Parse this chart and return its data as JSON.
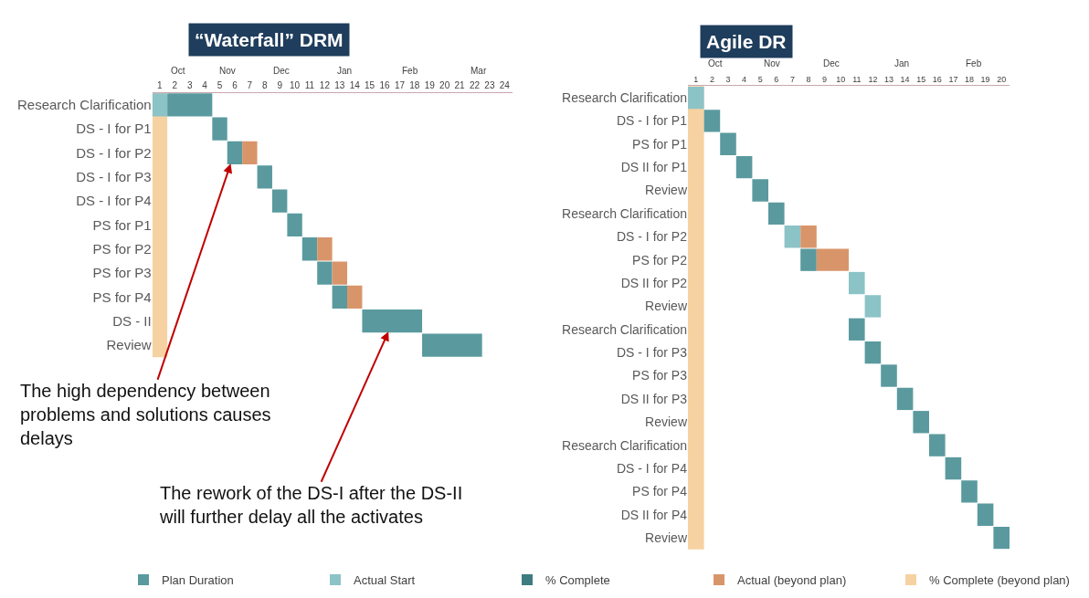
{
  "chart_data": [
    {
      "type": "bar",
      "orientation": "horizontal",
      "title": "“Waterfall” DRM",
      "categories": [
        "Research Clarification",
        "DS - I for P1",
        "DS - I for P2",
        "DS - I for P3",
        "DS - I for P4",
        "PS for P1",
        "PS for P2",
        "PS for P3",
        "PS for P4",
        "DS - II",
        "Review"
      ],
      "series": [
        {
          "name": "Plan Duration",
          "color": "#5a9a9e",
          "base": [
            1,
            4,
            5,
            7,
            8,
            9,
            10,
            11,
            12,
            14,
            18
          ],
          "values": [
            3,
            1,
            1,
            1,
            1,
            1,
            1,
            1,
            1,
            4,
            4
          ]
        },
        {
          "name": "Actual Start",
          "color": "#8cc3c7",
          "base": [
            0,
            null,
            null,
            null,
            null,
            null,
            null,
            null,
            null,
            null,
            null
          ],
          "values": [
            1,
            null,
            null,
            null,
            null,
            null,
            null,
            null,
            null,
            null,
            null
          ]
        },
        {
          "name": "% Complete",
          "color": "#3f7c80",
          "base": [
            null,
            null,
            null,
            null,
            null,
            null,
            null,
            null,
            null,
            null,
            null
          ],
          "values": [
            null,
            null,
            null,
            null,
            null,
            null,
            null,
            null,
            null,
            null,
            null
          ]
        },
        {
          "name": "Actual (beyond plan)",
          "color": "#d9956a",
          "base": [
            null,
            null,
            6,
            null,
            null,
            null,
            11,
            12,
            13,
            null,
            null
          ],
          "values": [
            null,
            null,
            1,
            null,
            null,
            null,
            1,
            1,
            1,
            null,
            null
          ]
        }
      ],
      "xlim": [
        0,
        24
      ],
      "xticks": [
        {
          "value": 0.5,
          "label": "1"
        },
        {
          "value": 1.5,
          "label": "2"
        },
        {
          "value": 2.5,
          "label": "3"
        },
        {
          "value": 3.5,
          "label": "4"
        },
        {
          "value": 4.5,
          "label": "5"
        },
        {
          "value": 5.5,
          "label": "6"
        },
        {
          "value": 6.5,
          "label": "7"
        },
        {
          "value": 7.5,
          "label": "8"
        },
        {
          "value": 8.5,
          "label": "9"
        },
        {
          "value": 9.5,
          "label": "10"
        },
        {
          "value": 10.5,
          "label": "11"
        },
        {
          "value": 11.5,
          "label": "12"
        },
        {
          "value": 12.5,
          "label": "13"
        },
        {
          "value": 13.5,
          "label": "14"
        },
        {
          "value": 14.5,
          "label": "15"
        },
        {
          "value": 15.5,
          "label": "16"
        },
        {
          "value": 16.5,
          "label": "17"
        },
        {
          "value": 17.5,
          "label": "18"
        },
        {
          "value": 18.5,
          "label": "19"
        },
        {
          "value": 19.5,
          "label": "20"
        },
        {
          "value": 20.5,
          "label": "21"
        },
        {
          "value": 21.5,
          "label": "22"
        },
        {
          "value": 22.5,
          "label": "23"
        },
        {
          "value": 23.5,
          "label": "24"
        }
      ],
      "bands": [
        {
          "axis": "x",
          "from": 0,
          "to": 1,
          "label": "% Complete (beyond plan)",
          "color": "#f6d2a2"
        }
      ],
      "legend": "bottom",
      "annotations": [
        "Oct",
        "Nov",
        "Dec",
        "Jan",
        "Feb",
        "Mar",
        "The high dependency between\nproblems and solutions causes\ndelays",
        "The rework of the DS-I after the DS-II\nwill further delay all the activates"
      ]
    },
    {
      "type": "bar",
      "orientation": "horizontal",
      "title": "Agile DR",
      "categories": [
        "Research Clarification",
        "DS - I for P1",
        "PS for P1",
        "DS II for P1",
        "Review",
        "Research Clarification",
        "DS - I for P2",
        "PS for P2",
        "DS II for P2",
        "Review",
        "Research Clarification",
        "DS - I for P3",
        "PS for P3",
        "DS II for P3",
        "Review",
        "Research Clarification",
        "DS - I for P4",
        "PS for P4",
        "DS II for P4",
        "Review"
      ],
      "series": [
        {
          "color": "#5a9a9e",
          "base": [
            null,
            1,
            2,
            3,
            4,
            5,
            null,
            7,
            null,
            null,
            10,
            11,
            12,
            13,
            14,
            15,
            16,
            17,
            18,
            19
          ],
          "values": [
            null,
            1,
            1,
            1,
            1,
            1,
            null,
            1,
            null,
            null,
            1,
            1,
            1,
            1,
            1,
            1,
            1,
            1,
            1,
            1
          ]
        },
        {
          "color": "#8cc3c7",
          "base": [
            0,
            null,
            null,
            null,
            null,
            null,
            6,
            null,
            10,
            11,
            null,
            null,
            null,
            null,
            null,
            null,
            null,
            null,
            null,
            null
          ],
          "values": [
            1,
            null,
            null,
            null,
            null,
            null,
            1,
            null,
            1,
            1,
            null,
            null,
            null,
            null,
            null,
            null,
            null,
            null,
            null,
            null
          ]
        },
        {
          "color": "#d9956a",
          "base": [
            null,
            null,
            null,
            null,
            null,
            null,
            7,
            8,
            null,
            null,
            null,
            null,
            null,
            null,
            null,
            null,
            null,
            null,
            null,
            null
          ],
          "values": [
            null,
            null,
            null,
            null,
            null,
            null,
            1,
            2,
            null,
            null,
            null,
            null,
            null,
            null,
            null,
            null,
            null,
            null,
            null,
            null
          ]
        }
      ],
      "xlim": [
        0,
        20
      ],
      "xticks": [
        {
          "value": 0.5,
          "label": "1"
        },
        {
          "value": 1.5,
          "label": "2"
        },
        {
          "value": 2.5,
          "label": "3"
        },
        {
          "value": 3.5,
          "label": "4"
        },
        {
          "value": 4.5,
          "label": "5"
        },
        {
          "value": 5.5,
          "label": "6"
        },
        {
          "value": 6.5,
          "label": "7"
        },
        {
          "value": 7.5,
          "label": "8"
        },
        {
          "value": 8.5,
          "label": "9"
        },
        {
          "value": 9.5,
          "label": "10"
        },
        {
          "value": 10.5,
          "label": "11"
        },
        {
          "value": 11.5,
          "label": "12"
        },
        {
          "value": 12.5,
          "label": "13"
        },
        {
          "value": 13.5,
          "label": "14"
        },
        {
          "value": 14.5,
          "label": "15"
        },
        {
          "value": 15.5,
          "label": "16"
        },
        {
          "value": 16.5,
          "label": "17"
        },
        {
          "value": 17.5,
          "label": "18"
        },
        {
          "value": 18.5,
          "label": "19"
        },
        {
          "value": 19.5,
          "label": "20"
        }
      ],
      "annotations": [
        "Oct",
        "Nov",
        "Dec",
        "Jan",
        "Feb"
      ],
      "bands": [
        {
          "axis": "x",
          "from": 0,
          "to": 1,
          "color": "#f6d2a2"
        }
      ]
    }
  ]
}
